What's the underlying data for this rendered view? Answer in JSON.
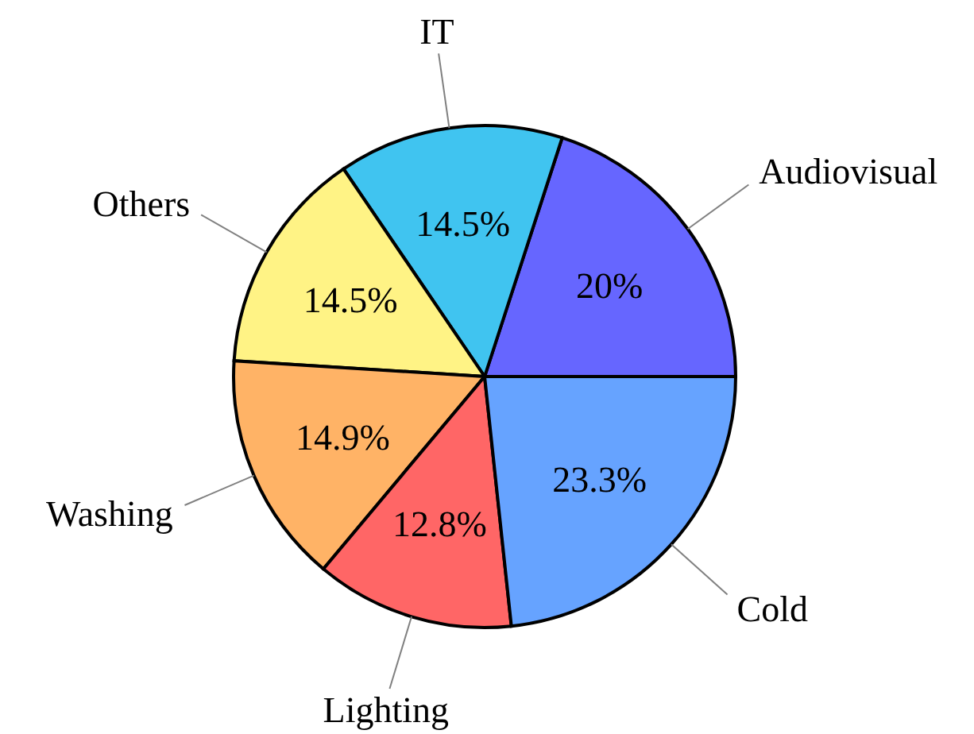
{
  "chart_data": {
    "type": "pie",
    "categories": [
      "Audiovisual",
      "IT",
      "Others",
      "Washing",
      "Lighting",
      "Cold"
    ],
    "values": [
      20,
      14.5,
      14.5,
      14.9,
      12.8,
      23.3
    ],
    "value_labels": [
      "20%",
      "14.5%",
      "14.5%",
      "14.9%",
      "12.8%",
      "23.3%"
    ],
    "colors": [
      "#6666ff",
      "#40c4f0",
      "#fff385",
      "#ffb366",
      "#ff6666",
      "#66a3ff"
    ],
    "legend": false
  }
}
